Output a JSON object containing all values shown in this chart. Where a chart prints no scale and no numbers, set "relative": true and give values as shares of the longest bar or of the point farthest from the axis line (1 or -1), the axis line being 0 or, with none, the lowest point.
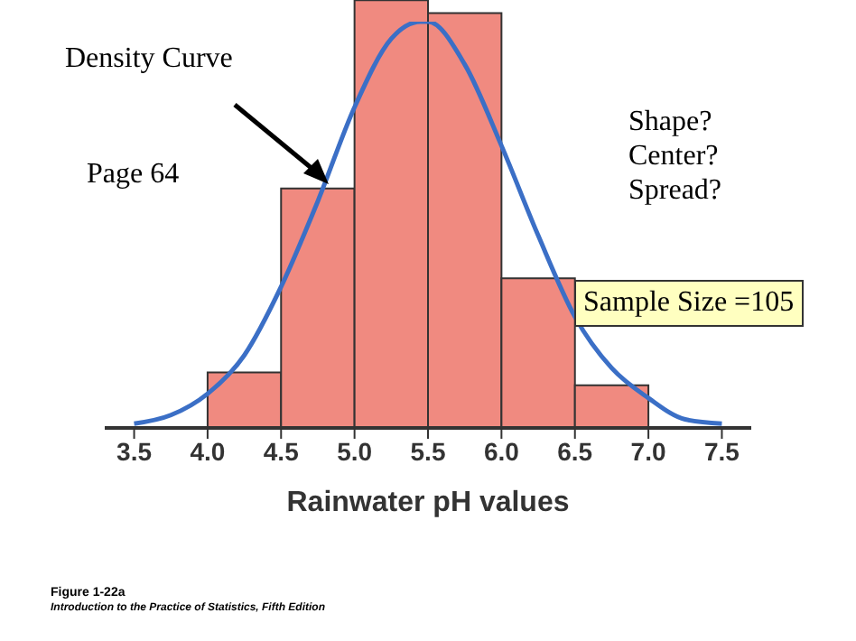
{
  "chart_data": {
    "type": "histogram",
    "relative": true,
    "xlabel": "Rainwater pH values",
    "bins": [
      4.0,
      4.5,
      5.0,
      5.5,
      6.0,
      6.5,
      7.0
    ],
    "values": [
      0.13,
      0.56,
      1,
      0.97,
      0.35,
      0.1
    ],
    "color": "#f08a80",
    "series": [
      {
        "type": "line",
        "color": "#3b6fc6",
        "x": [
          3.5,
          3.75,
          4.0,
          4.25,
          4.5,
          4.75,
          5.0,
          5.25,
          5.45,
          5.5,
          5.75,
          6.0,
          6.25,
          6.5,
          6.75,
          7.0,
          7.25,
          7.5
        ],
        "values": [
          0.01,
          0.03,
          0.08,
          0.17,
          0.33,
          0.53,
          0.75,
          0.91,
          0.95,
          0.95,
          0.85,
          0.66,
          0.45,
          0.26,
          0.14,
          0.07,
          0.02,
          0.01
        ]
      }
    ],
    "xlim": [
      3.3,
      7.7
    ],
    "xticks": [
      3.5,
      {
        "value": 4,
        "label": "4.0"
      },
      4.5,
      {
        "value": 5,
        "label": "5.0"
      },
      5.5,
      {
        "value": 6,
        "label": "6.0"
      },
      6.5,
      {
        "value": 7,
        "label": "7.0"
      },
      7.5
    ],
    "grid": false,
    "legend": false,
    "annotations": [
      "Density Curve",
      "Page 64",
      "Shape?\nCenter?\nSpread?",
      "Sample Size =105",
      "Figure 1-22a",
      "Introduction to the Practice of Statistics, Fifth Edition"
    ]
  }
}
